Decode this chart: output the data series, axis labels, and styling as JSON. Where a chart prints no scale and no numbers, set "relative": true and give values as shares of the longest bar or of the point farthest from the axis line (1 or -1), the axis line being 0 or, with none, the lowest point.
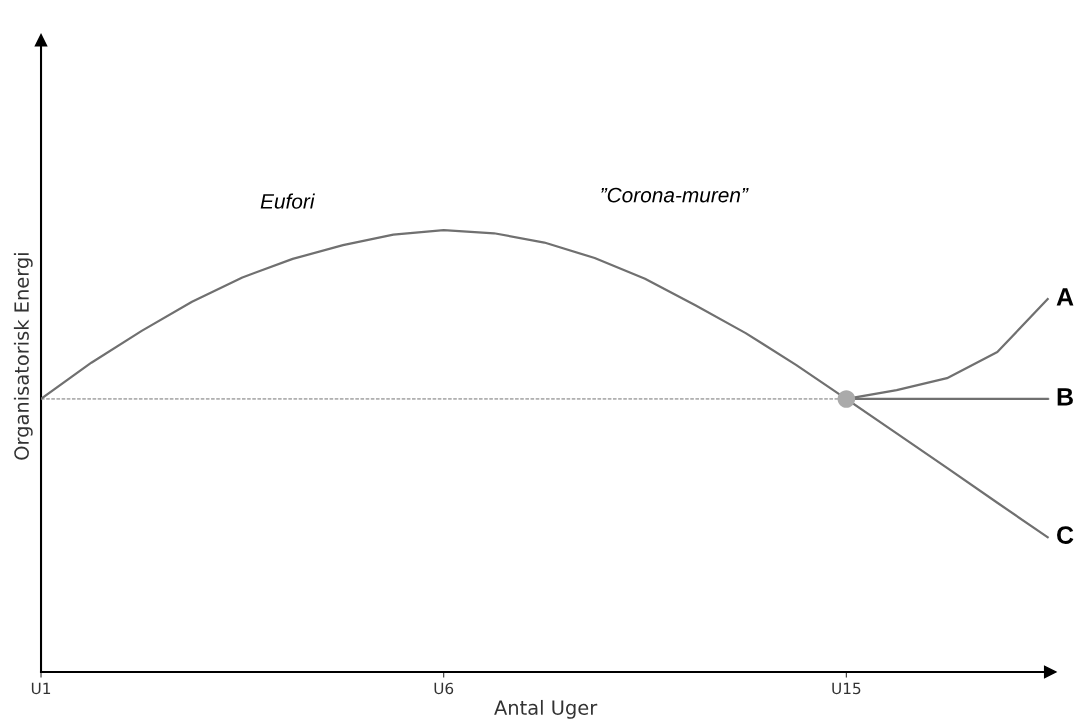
{
  "chart_data": {
    "type": "line",
    "relative": true,
    "xlabel": "Antal Uger",
    "ylabel": "Organisatorisk Energi",
    "categories": [
      "U1",
      null,
      null,
      null,
      null,
      null,
      null,
      null,
      "U6",
      null,
      null,
      null,
      null,
      null,
      null,
      null,
      "U15",
      null,
      null,
      null,
      null
    ],
    "tick_labels": "x",
    "grid": false,
    "legend": false,
    "marker": "none",
    "line_style": "solid",
    "series": [
      {
        "color": "#707070",
        "values": [
          0.618,
          0.7,
          0.772,
          0.838,
          0.893,
          0.935,
          0.966,
          0.99,
          1.0,
          0.993,
          0.972,
          0.937,
          0.89,
          0.83,
          0.767,
          0.695,
          0.618,
          null,
          null,
          null,
          null
        ]
      },
      {
        "name": "A",
        "color": "#707070",
        "values": [
          null,
          null,
          null,
          null,
          null,
          null,
          null,
          null,
          null,
          null,
          null,
          null,
          null,
          null,
          null,
          null,
          0.618,
          0.638,
          0.665,
          0.724,
          0.844
        ]
      },
      {
        "name": "B",
        "color": "#707070",
        "values": [
          null,
          null,
          null,
          null,
          null,
          null,
          null,
          null,
          null,
          null,
          null,
          null,
          null,
          null,
          null,
          null,
          0.618,
          0.618,
          0.618,
          0.618,
          0.618
        ]
      },
      {
        "name": "C",
        "color": "#707070",
        "values": [
          null,
          null,
          null,
          null,
          null,
          null,
          null,
          null,
          null,
          null,
          null,
          null,
          null,
          null,
          null,
          null,
          0.618,
          0.54,
          0.462,
          0.383,
          0.305
        ]
      },
      {
        "type": "scatter",
        "marker": "circle",
        "color": "#aaaaaa",
        "values": [
          null,
          null,
          null,
          null,
          null,
          null,
          null,
          null,
          null,
          null,
          null,
          null,
          null,
          null,
          null,
          null,
          0.618,
          null,
          null,
          null,
          null
        ]
      }
    ],
    "ref_lines": [
      {
        "axis": "y",
        "value": 0.618,
        "color": "#707070",
        "line_style": "dashed"
      }
    ],
    "annotations": [
      "Eufori",
      "”Corona-muren”"
    ]
  }
}
